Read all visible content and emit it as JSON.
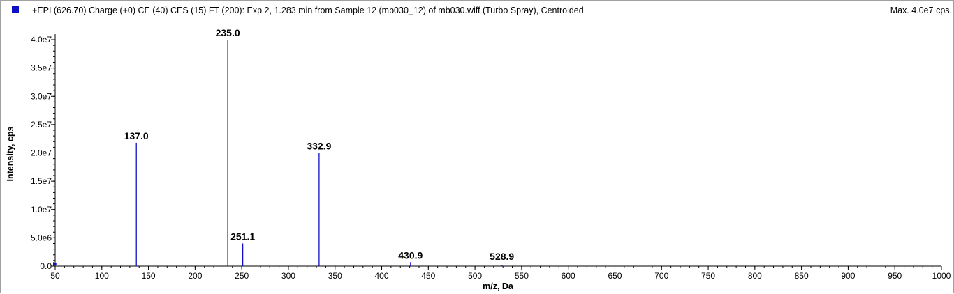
{
  "header": {
    "title": "+EPI (626.70) Charge (+0) CE (40) CES (15) FT (200): Exp 2, 1.283 min from Sample 12 (mb030_12) of mb030.wiff (Turbo Spray), Centroided",
    "max_label": "Max. 4.0e7 cps."
  },
  "colors": {
    "series": "#1010c8",
    "axis": "#000000"
  },
  "chart_data": {
    "type": "bar",
    "title": "",
    "xlabel": "m/z, Da",
    "ylabel": "Intensity, cps",
    "xlim": [
      50,
      1000
    ],
    "ylim": [
      0,
      40000000
    ],
    "x_ticks": [
      50,
      100,
      150,
      200,
      250,
      300,
      350,
      400,
      450,
      500,
      550,
      600,
      650,
      700,
      750,
      800,
      850,
      900,
      950,
      1000
    ],
    "y_ticks": [
      {
        "value": 0,
        "label": "0.0"
      },
      {
        "value": 5000000,
        "label": "5.0e6"
      },
      {
        "value": 10000000,
        "label": "1.0e7"
      },
      {
        "value": 15000000,
        "label": "1.5e7"
      },
      {
        "value": 20000000,
        "label": "2.0e7"
      },
      {
        "value": 25000000,
        "label": "2.5e7"
      },
      {
        "value": 30000000,
        "label": "3.0e7"
      },
      {
        "value": 35000000,
        "label": "3.5e7"
      },
      {
        "value": 40000000,
        "label": "4.0e7"
      }
    ],
    "peaks": [
      {
        "mz": 137.0,
        "intensity": 21800000,
        "label": "137.0"
      },
      {
        "mz": 235.0,
        "intensity": 40000000,
        "label": "235.0"
      },
      {
        "mz": 251.1,
        "intensity": 4000000,
        "label": "251.1"
      },
      {
        "mz": 332.9,
        "intensity": 20000000,
        "label": "332.9"
      },
      {
        "mz": 430.9,
        "intensity": 700000,
        "label": "430.9"
      },
      {
        "mz": 528.9,
        "intensity": 150000,
        "label": "528.9"
      }
    ],
    "grid": false,
    "legend": "none"
  }
}
